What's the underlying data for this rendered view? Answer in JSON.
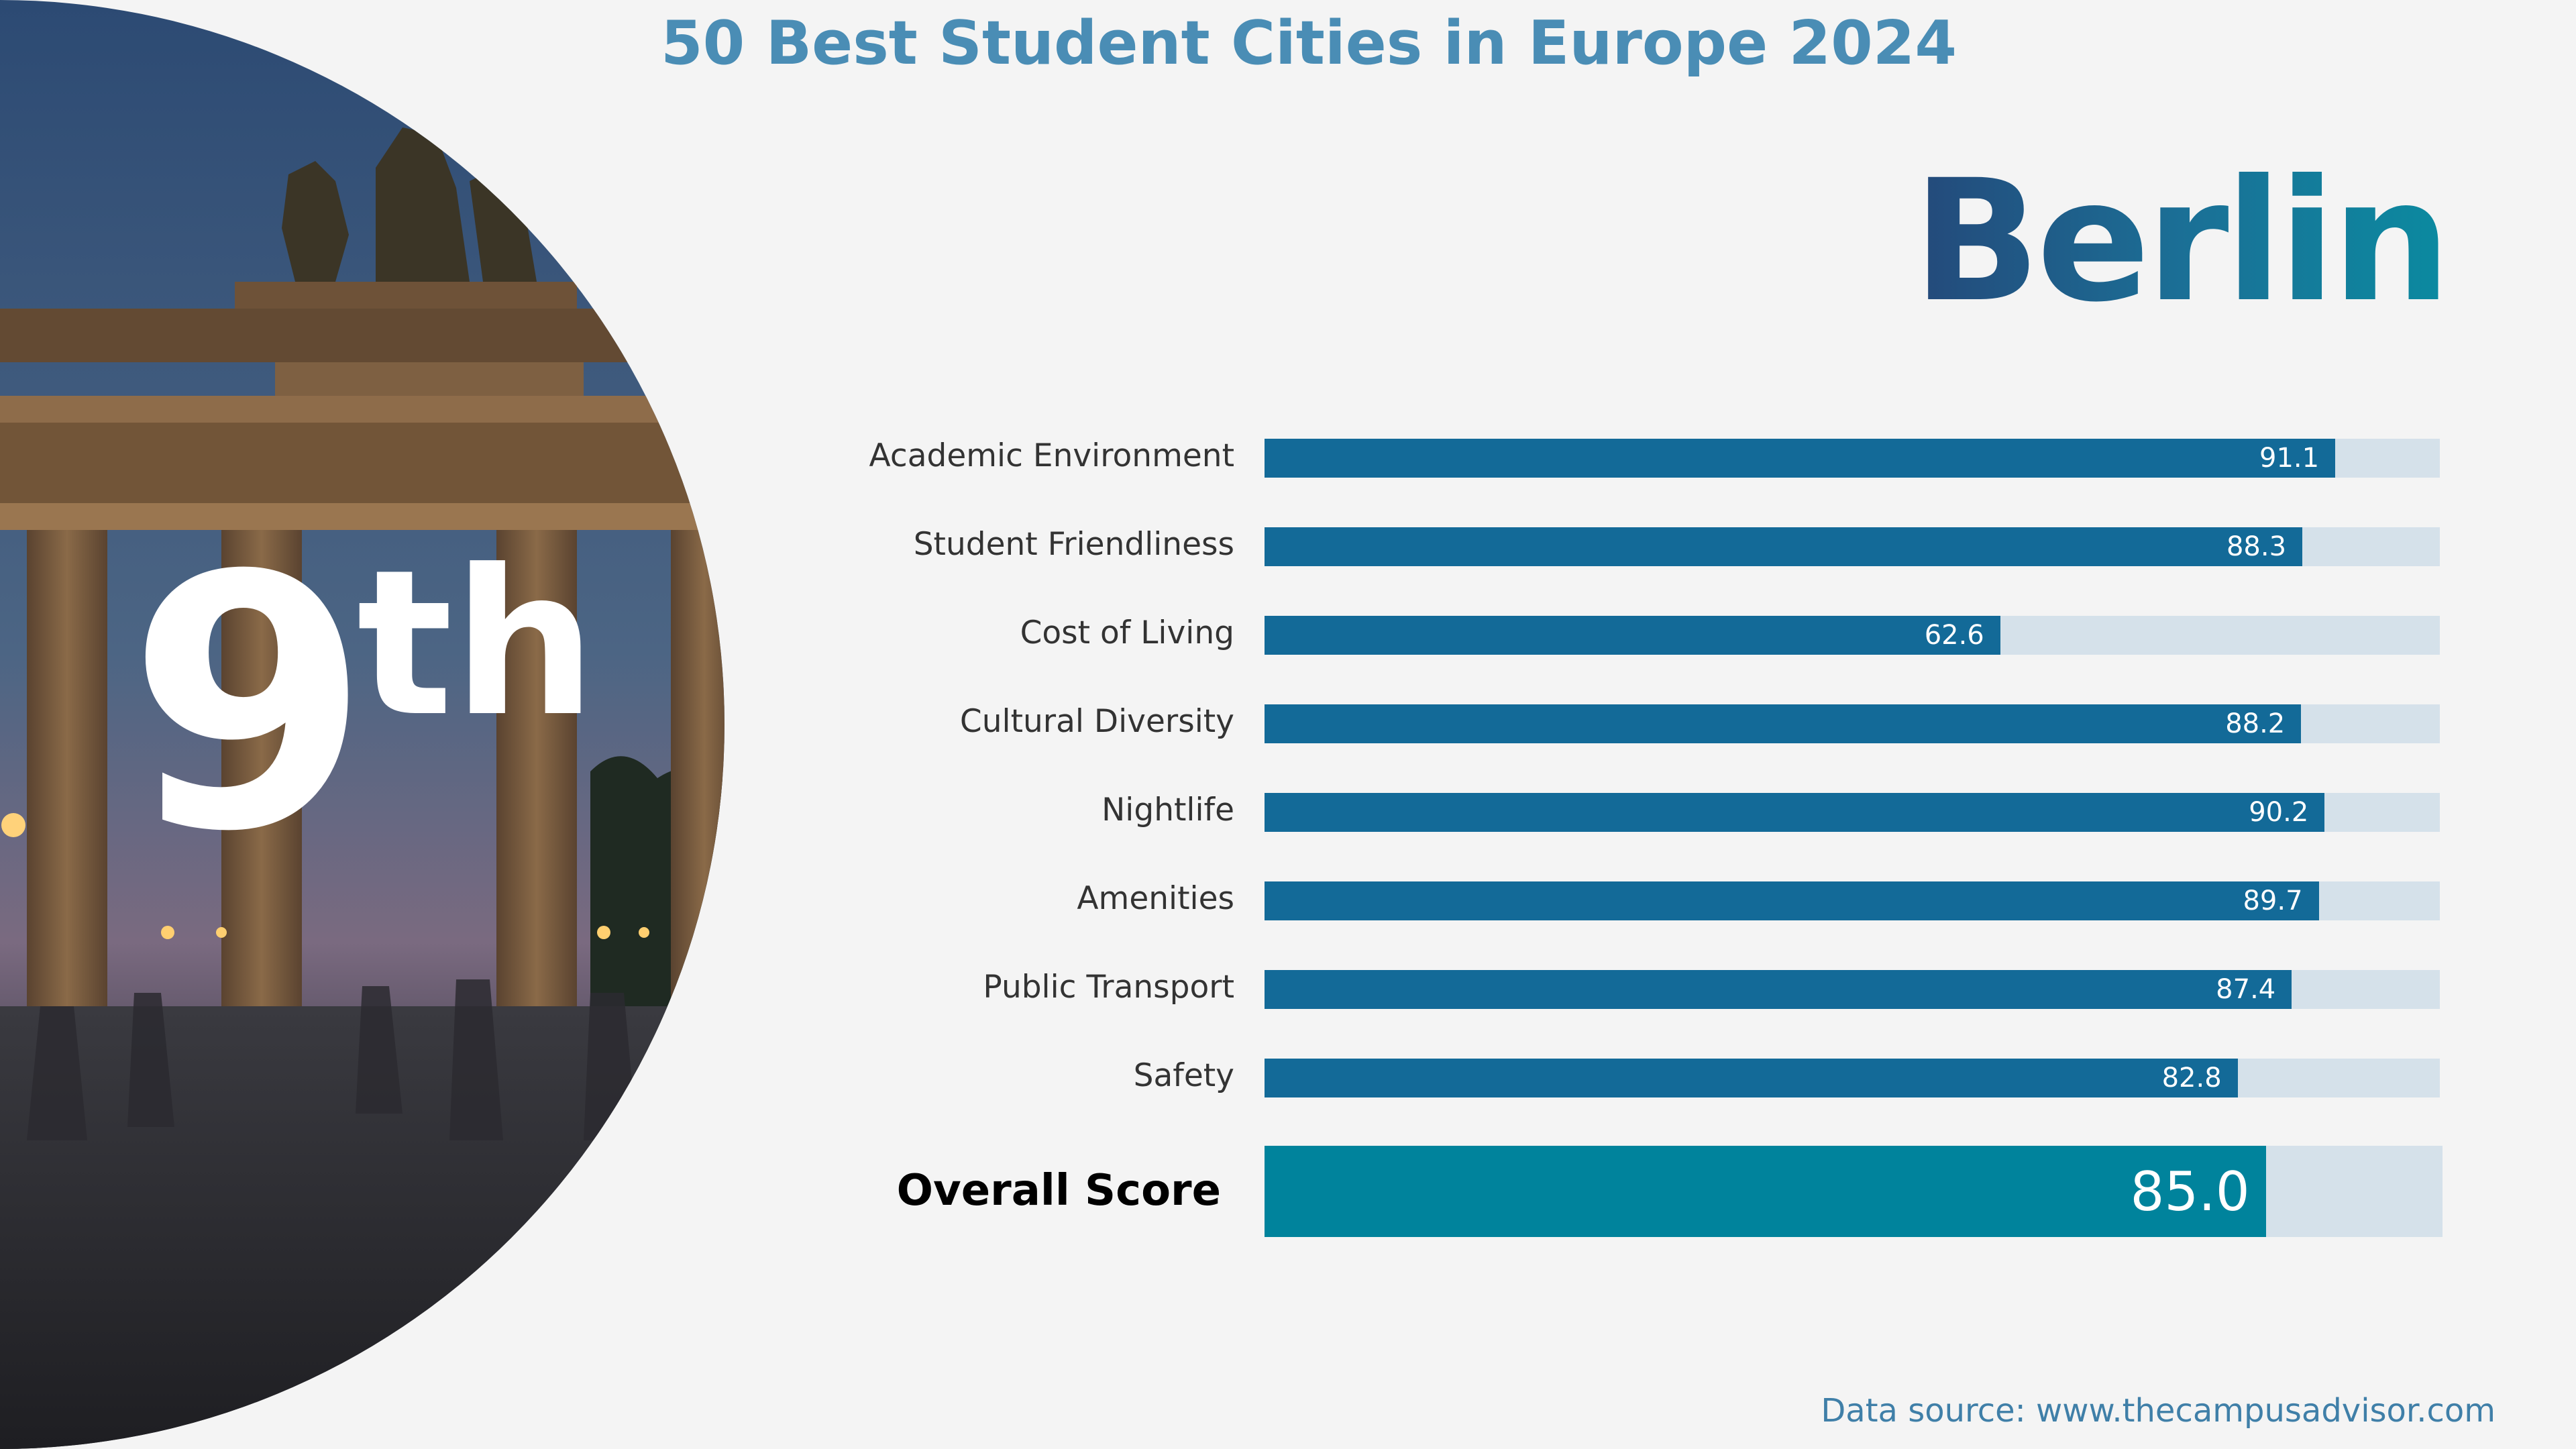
{
  "title": "50 Best Student Cities in Europe 2024",
  "city": "Berlin",
  "rank": {
    "number": "9",
    "suffix": "th"
  },
  "source": "Data source: www.thecampusadvisor.com",
  "colors": {
    "bar": "#136a98",
    "track": "#d5e1ea",
    "overall_bar": "#00839c",
    "title": "#4a8db5"
  },
  "chart_data": {
    "type": "bar",
    "orientation": "horizontal",
    "categories": [
      "Academic Environment",
      "Student Friendliness",
      "Cost of Living",
      "Cultural Diversity",
      "Nightlife",
      "Amenities",
      "Public Transport",
      "Safety"
    ],
    "values": [
      91.1,
      88.3,
      62.6,
      88.2,
      90.2,
      89.7,
      87.4,
      82.8
    ],
    "value_labels": [
      "91.1",
      "88.3",
      "62.6",
      "88.2",
      "90.2",
      "89.7",
      "87.4",
      "82.8"
    ],
    "xlim": [
      0,
      100
    ],
    "grid": false,
    "overall": {
      "label": "Overall Score",
      "value": 85.0,
      "value_label": "85.0"
    }
  }
}
